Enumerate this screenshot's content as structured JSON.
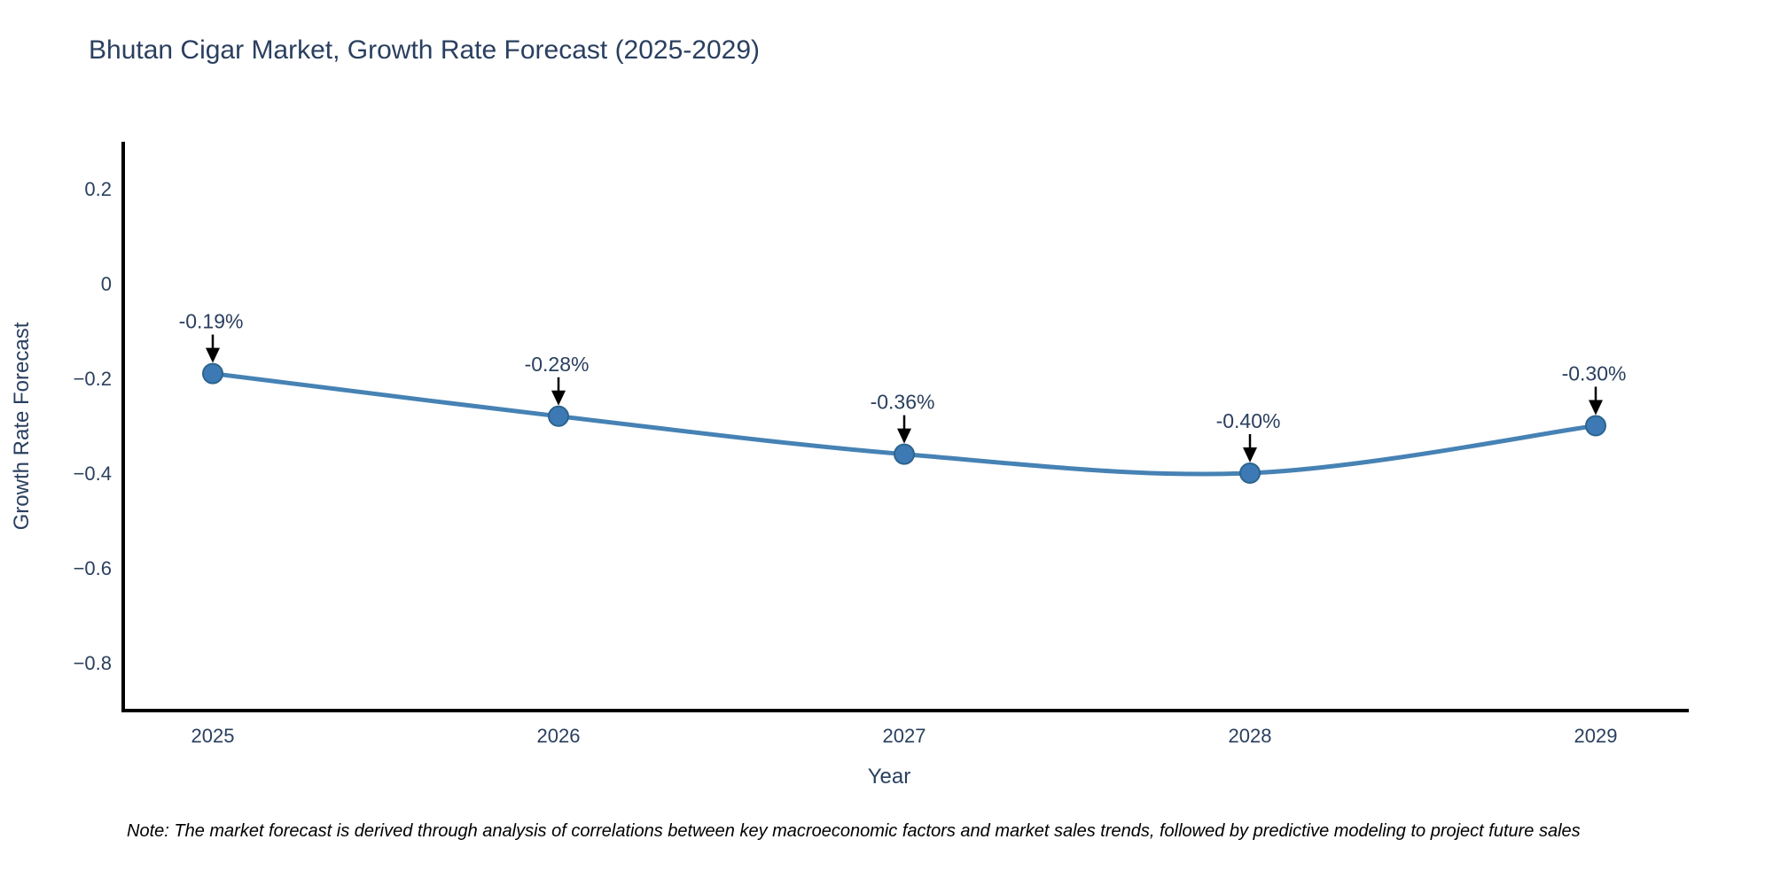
{
  "chart_data": {
    "type": "line",
    "title": "Bhutan Cigar Market, Growth Rate Forecast (2025-2029)",
    "xlabel": "Year",
    "ylabel": "Growth Rate Forecast",
    "categories": [
      "2025",
      "2026",
      "2027",
      "2028",
      "2029"
    ],
    "series": [
      {
        "name": "Growth Rate Forecast",
        "values": [
          -0.19,
          -0.28,
          -0.36,
          -0.4,
          -0.3
        ],
        "point_labels": [
          "-0.19%",
          "-0.28%",
          "-0.36%",
          "-0.40%",
          "-0.30%"
        ]
      }
    ],
    "yticks": [
      0.2,
      0,
      -0.2,
      -0.4,
      -0.6,
      -0.8
    ],
    "ylim": [
      -0.91,
      0.31
    ],
    "grid": false,
    "legend_position": "none",
    "line_shape": "spline",
    "annotations_style": "value label with down arrow to point",
    "colors": {
      "line": "#4682b4",
      "marker_fill": "#3d7ab5",
      "marker_edge": "#2c648e",
      "axis_line": "#000000",
      "tick_text": "#2a3f5f",
      "title_text": "#2a3f5f",
      "annotation_text": "#2a3f5f",
      "annotation_arrow": "#000000",
      "background": "#ffffff",
      "note_text": "#000000"
    }
  },
  "note": "Note: The market forecast is derived through analysis of correlations between key macroeconomic factors and market sales trends, followed by predictive modeling to project future sales"
}
